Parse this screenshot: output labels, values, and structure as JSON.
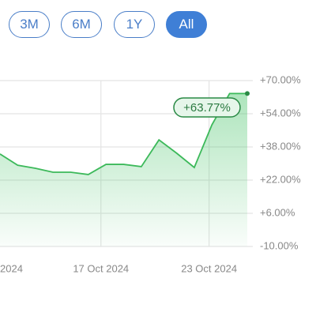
{
  "buttons": [
    "3M",
    "6M",
    "1Y",
    "All"
  ],
  "chart_data": {
    "type": "area",
    "annotation": "+63.77%",
    "x": [
      11.4,
      12.38,
      13.36,
      14.34,
      15.32,
      16.3,
      17.28,
      18.26,
      19.24,
      20.22,
      21.2,
      22.18,
      23.16,
      24.14,
      25.12
    ],
    "series": [
      {
        "color": "#3cb95a",
        "values": [
          34.6,
          29.2,
          27.7,
          25.8,
          25.8,
          24.7,
          29.6,
          29.6,
          28.5,
          41.4,
          35.0,
          28.1,
          48.7,
          63.77,
          63.77
        ]
      }
    ],
    "xlim": [
      11.4,
      25.12
    ],
    "xticks": [
      {
        "value": 11,
        "label": "2024"
      },
      {
        "value": 17,
        "label": "17 Oct 2024"
      },
      {
        "value": 23,
        "label": "23 Oct 2024"
      }
    ],
    "ylim": [
      -10,
      70
    ],
    "yticks": [
      {
        "value": 70,
        "label": "+70.00%"
      },
      {
        "value": 54,
        "label": "+54.00%"
      },
      {
        "value": 38,
        "label": "+38.00%"
      },
      {
        "value": 22,
        "label": "+22.00%"
      },
      {
        "value": 6,
        "label": "+6.00%"
      },
      {
        "value": -10,
        "label": "-10.00%"
      }
    ],
    "grid": true
  }
}
